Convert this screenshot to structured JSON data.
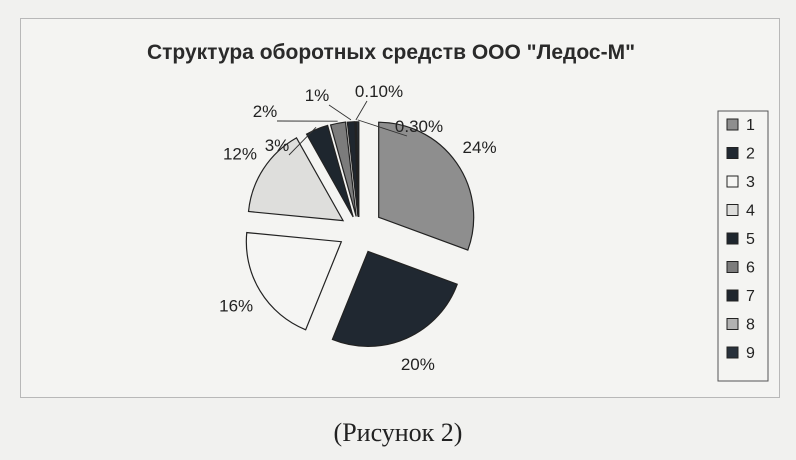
{
  "chart_data": {
    "type": "pie",
    "title": "Структура оборотных средств ООО \"Ледос-М\"",
    "categories": [
      "1",
      "2",
      "3",
      "4",
      "5",
      "6",
      "7",
      "8",
      "9"
    ],
    "values": [
      24,
      20,
      16,
      12,
      3,
      2,
      1,
      0.1,
      0.3
    ],
    "labels": [
      "24%",
      "20%",
      "16%",
      "12%",
      "3%",
      "2%",
      "1%",
      "0.10%",
      "0.30%"
    ],
    "exploded": true,
    "legend": "right",
    "colors": [
      "#8e8e8e",
      "#202831",
      "#f5f5f3",
      "#dededc",
      "#1e262e",
      "#7c7c7c",
      "#1f262e",
      "#b2b2b2",
      "#28313b"
    ]
  },
  "caption": "(Рисунок  2)"
}
